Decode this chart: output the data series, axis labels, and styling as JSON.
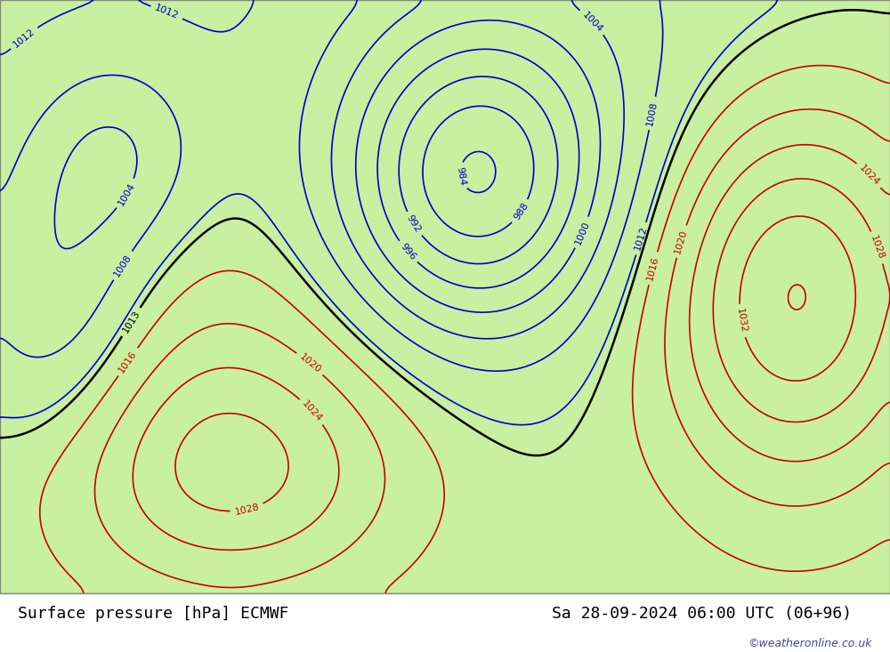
{
  "title_left": "Surface pressure [hPa] ECMWF",
  "title_right": "Sa 28-09-2024 06:00 UTC (06+96)",
  "copyright": "©weatheronline.co.uk",
  "bg_color_land": "#c8f0a0",
  "bg_color_sea": "#e8e8f0",
  "bg_color_outside": "#d0d0d0",
  "border_color": "#888888",
  "title_font_size": 14,
  "copyright_font_size": 9,
  "contour_interval": 4,
  "black_interval": 1013,
  "red_color": "#cc0000",
  "blue_color": "#0000cc",
  "black_color": "#000000"
}
